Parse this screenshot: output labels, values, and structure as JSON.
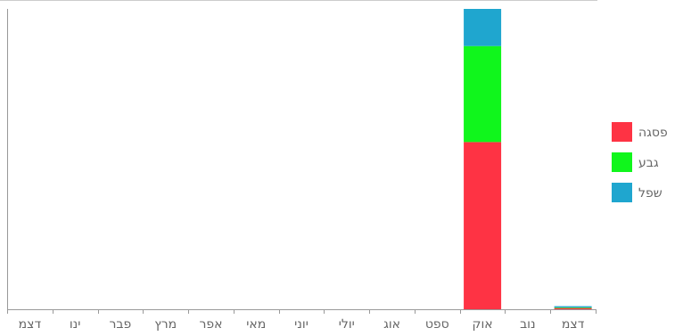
{
  "chart_data": {
    "type": "bar",
    "stacked": true,
    "categories": [
      "דצמ",
      "ינו",
      "פבר",
      "מרץ",
      "אפר",
      "מאי",
      "יוני",
      "יולי",
      "אוג",
      "ספט",
      "אוק",
      "נוב",
      "דצמ"
    ],
    "series": [
      {
        "name": "פסגה",
        "values": [
          0,
          0,
          0,
          0,
          0,
          0,
          0,
          0,
          0,
          0,
          54,
          0,
          0.4
        ]
      },
      {
        "name": "גבע",
        "values": [
          0,
          0,
          0,
          0,
          0,
          0,
          0,
          0,
          0,
          0,
          31,
          0,
          0.2
        ]
      },
      {
        "name": "שפל",
        "values": [
          0,
          0,
          0,
          0,
          0,
          0,
          0,
          0,
          0,
          0,
          12,
          0,
          0.4
        ]
      }
    ],
    "colors": [
      "#fe3344",
      "#10f61c",
      "#1fa6cf"
    ],
    "legend_position": "right",
    "grid": false,
    "ylim": [
      0,
      97
    ],
    "xlabel": "",
    "ylabel": "",
    "title": ""
  }
}
